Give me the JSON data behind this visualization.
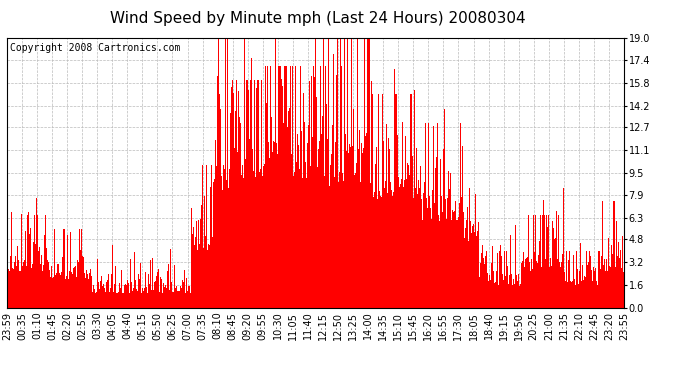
{
  "title": "Wind Speed by Minute mph (Last 24 Hours) 20080304",
  "copyright": "Copyright 2008 Cartronics.com",
  "yticks": [
    0.0,
    1.6,
    3.2,
    4.8,
    6.3,
    7.9,
    9.5,
    11.1,
    12.7,
    14.2,
    15.8,
    17.4,
    19.0
  ],
  "ymin": 0.0,
  "ymax": 19.0,
  "bar_color": "#ff0000",
  "bg_color": "#ffffff",
  "grid_color": "#bbbbbb",
  "title_fontsize": 11,
  "copyright_fontsize": 7,
  "tick_fontsize": 7,
  "xtick_labels": [
    "23:59",
    "00:35",
    "01:10",
    "01:45",
    "02:20",
    "02:55",
    "03:30",
    "04:05",
    "04:40",
    "05:15",
    "05:50",
    "06:25",
    "07:00",
    "07:35",
    "08:10",
    "08:45",
    "09:20",
    "09:55",
    "10:30",
    "11:05",
    "11:40",
    "12:15",
    "12:50",
    "13:25",
    "14:00",
    "14:35",
    "15:10",
    "15:45",
    "16:20",
    "16:55",
    "17:30",
    "18:05",
    "18:40",
    "19:15",
    "19:50",
    "20:25",
    "21:00",
    "21:35",
    "22:10",
    "22:45",
    "23:20",
    "23:55"
  ]
}
